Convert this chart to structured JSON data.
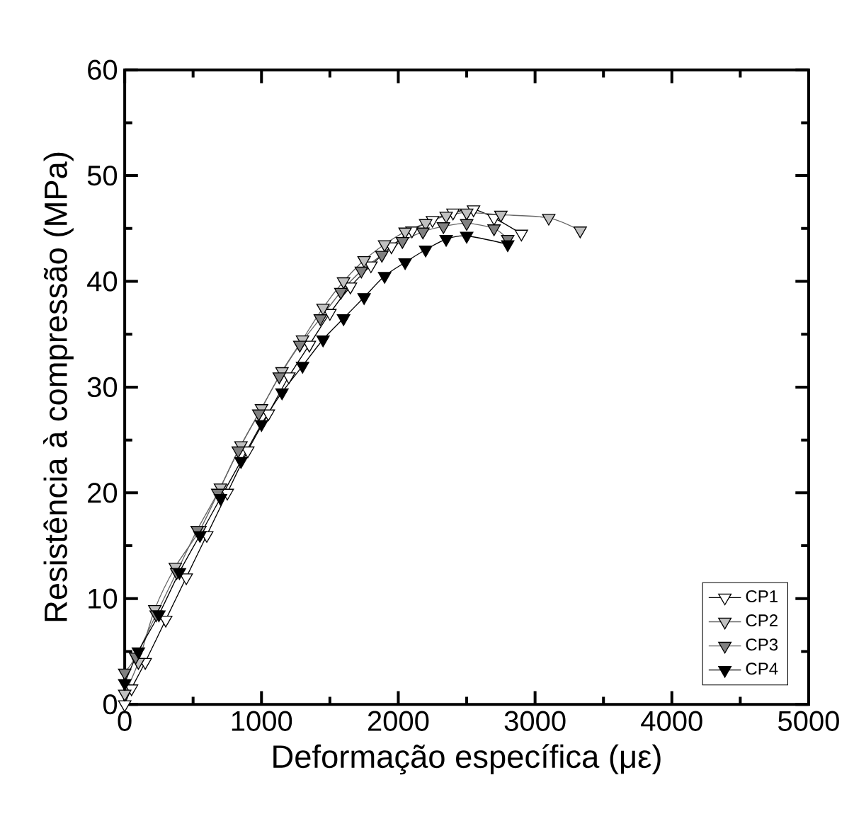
{
  "chart_data": {
    "type": "line",
    "xlabel": "Deformação específica (με)",
    "ylabel": "Resistência à compressão (MPa)",
    "xlim": [
      0,
      5000
    ],
    "ylim": [
      0,
      60
    ],
    "xticks": [
      0,
      1000,
      2000,
      3000,
      4000,
      5000
    ],
    "yticks": [
      0,
      10,
      20,
      30,
      40,
      50,
      60
    ],
    "grid": false,
    "legend": "bottom right",
    "marker": "triangle",
    "line_style": "solid",
    "series": [
      {
        "name": "CP1",
        "color": "#ffffff",
        "x": [
          0,
          50,
          150,
          300,
          450,
          600,
          750,
          900,
          1050,
          1200,
          1350,
          1500,
          1650,
          1800,
          1950,
          2100,
          2250,
          2400,
          2550,
          2700,
          2900
        ],
        "values": [
          0,
          1.5,
          4,
          8,
          12,
          16,
          20,
          24,
          27.5,
          31,
          34,
          37,
          39.5,
          41.5,
          43.3,
          44.8,
          45.8,
          46.5,
          46.8,
          46,
          44.5
        ]
      },
      {
        "name": "CP2",
        "color": "#c0c0c0",
        "x": [
          0,
          100,
          220,
          370,
          550,
          700,
          850,
          1000,
          1150,
          1300,
          1450,
          1600,
          1750,
          1900,
          2050,
          2200,
          2350,
          2500,
          2750,
          3100,
          3330
        ],
        "values": [
          1,
          4,
          9,
          13,
          16.5,
          20.5,
          24.5,
          28,
          31.5,
          34.5,
          37.5,
          40,
          42,
          43.5,
          44.7,
          45.5,
          46.2,
          46.5,
          46.3,
          46,
          44.8
        ]
      },
      {
        "name": "CP3",
        "color": "#808080",
        "x": [
          0,
          80,
          230,
          380,
          530,
          680,
          830,
          980,
          1130,
          1280,
          1430,
          1580,
          1730,
          1880,
          2030,
          2180,
          2330,
          2500,
          2700,
          2800
        ],
        "values": [
          3,
          4.5,
          8.5,
          12.5,
          16.5,
          20,
          24,
          27.5,
          31,
          34,
          36.5,
          39,
          41,
          42.5,
          43.8,
          44.7,
          45.2,
          45.5,
          45,
          44
        ]
      },
      {
        "name": "CP4",
        "color": "#000000",
        "x": [
          0,
          100,
          250,
          400,
          550,
          700,
          850,
          1000,
          1150,
          1300,
          1450,
          1600,
          1750,
          1900,
          2050,
          2200,
          2350,
          2500,
          2800
        ],
        "values": [
          2,
          5,
          8.5,
          12.5,
          16,
          19.5,
          23,
          26.5,
          29.5,
          32,
          34.5,
          36.5,
          38.5,
          40.5,
          41.8,
          43,
          44,
          44.3,
          43.5
        ]
      }
    ]
  }
}
